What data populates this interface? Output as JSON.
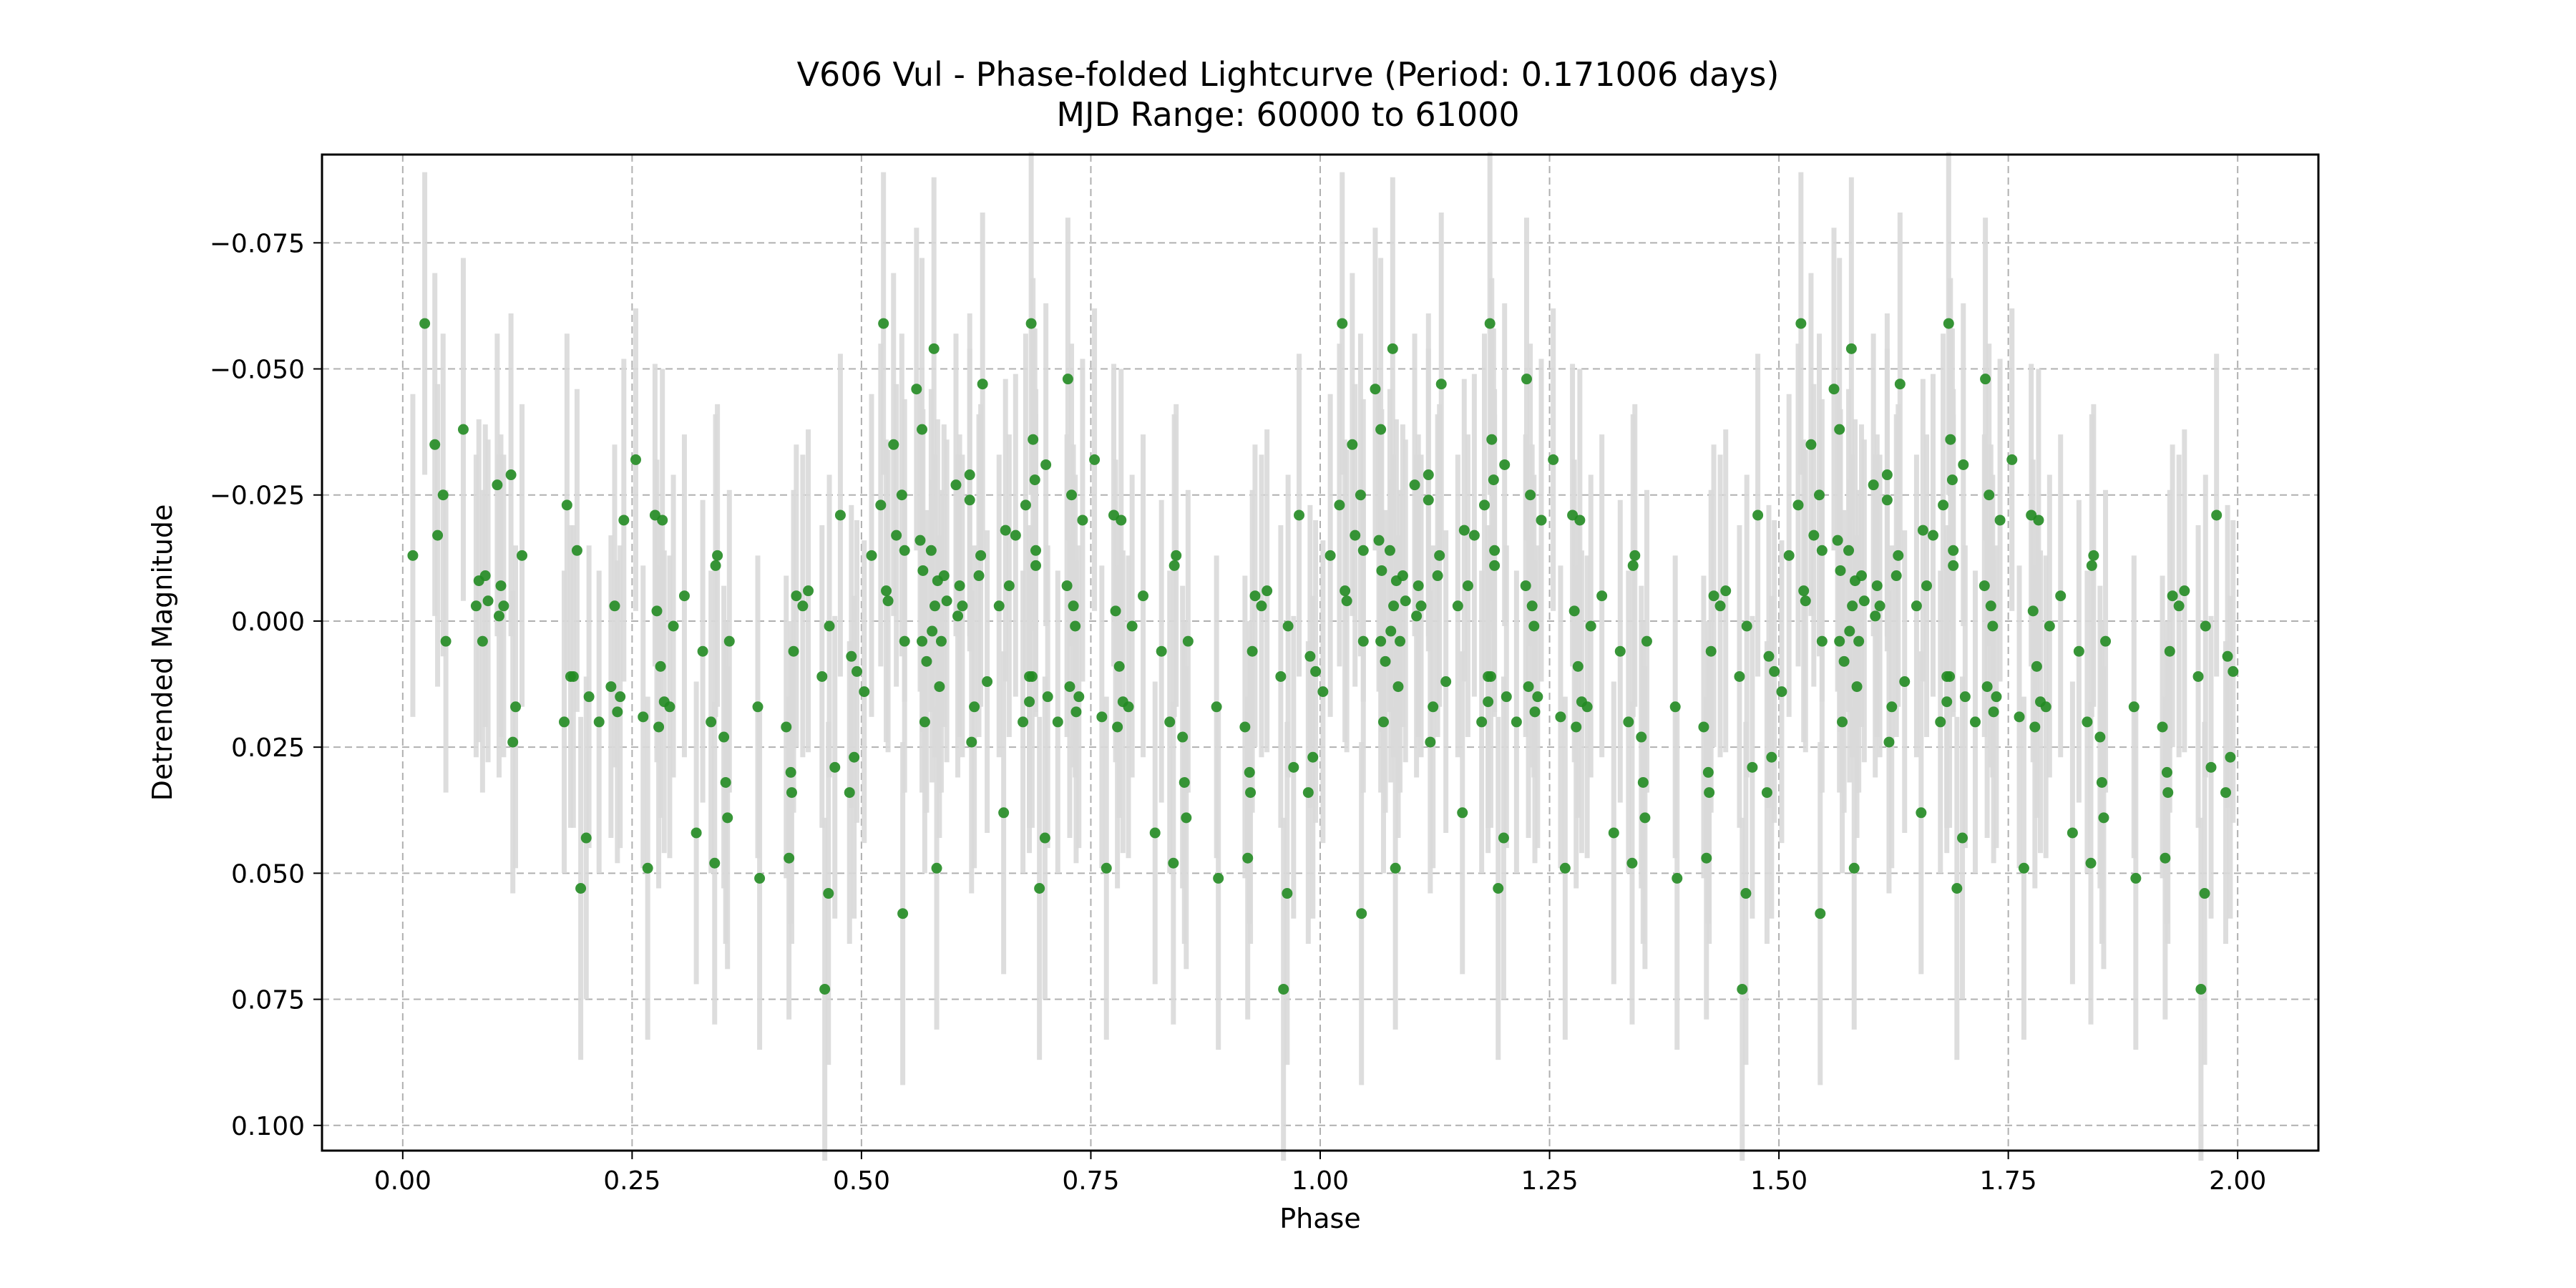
{
  "chart_data": {
    "type": "scatter",
    "title": "V606 Vul - Phase-folded Lightcurve (Period: 0.171006 days)",
    "subtitle": "MJD Range: 60000 to 61000",
    "xlabel": "Phase",
    "ylabel": "Detrended Magnitude",
    "xlim": [
      -0.088,
      2.088
    ],
    "ylim": [
      0.105,
      -0.0925
    ],
    "y_inverted": true,
    "grid": true,
    "x_ticks": [
      0.0,
      0.25,
      0.5,
      0.75,
      1.0,
      1.25,
      1.5,
      1.75,
      2.0
    ],
    "x_tick_labels": [
      "0.00",
      "0.25",
      "0.50",
      "0.75",
      "1.00",
      "1.25",
      "1.50",
      "1.75",
      "2.00"
    ],
    "y_ticks": [
      -0.075,
      -0.05,
      -0.025,
      0.0,
      0.025,
      0.05,
      0.075,
      0.1
    ],
    "y_tick_labels": [
      "−0.075",
      "−0.050",
      "−0.025",
      "0.000",
      "0.025",
      "0.050",
      "0.075",
      "0.100"
    ],
    "marker_color": "#228b22",
    "errorbar_color": "#d9d9d9",
    "base_points": [
      [
        0.011,
        -0.013,
        0.032
      ],
      [
        0.024,
        -0.059,
        0.03
      ],
      [
        0.035,
        -0.035,
        0.034
      ],
      [
        0.038,
        -0.017,
        0.03
      ],
      [
        0.044,
        -0.025,
        0.032
      ],
      [
        0.047,
        0.004,
        0.03
      ],
      [
        0.066,
        -0.038,
        0.034
      ],
      [
        0.08,
        -0.003,
        0.03
      ],
      [
        0.083,
        -0.008,
        0.032
      ],
      [
        0.087,
        0.004,
        0.03
      ],
      [
        0.09,
        -0.009,
        0.03
      ],
      [
        0.093,
        -0.004,
        0.032
      ],
      [
        0.103,
        -0.027,
        0.03
      ],
      [
        0.105,
        -0.001,
        0.032
      ],
      [
        0.107,
        -0.007,
        0.03
      ],
      [
        0.11,
        -0.003,
        0.03
      ],
      [
        0.118,
        -0.029,
        0.032
      ],
      [
        0.12,
        0.024,
        0.03
      ],
      [
        0.123,
        0.017,
        0.032
      ],
      [
        0.13,
        -0.013,
        0.03
      ],
      [
        0.176,
        0.02,
        0.03
      ],
      [
        0.179,
        -0.023,
        0.034
      ],
      [
        0.183,
        0.011,
        0.03
      ],
      [
        0.186,
        0.011,
        0.03
      ],
      [
        0.19,
        -0.014,
        0.032
      ],
      [
        0.194,
        0.053,
        0.034
      ],
      [
        0.2,
        0.043,
        0.032
      ],
      [
        0.203,
        0.015,
        0.03
      ],
      [
        0.214,
        0.02,
        0.03
      ],
      [
        0.227,
        0.013,
        0.03
      ],
      [
        0.231,
        -0.003,
        0.032
      ],
      [
        0.234,
        0.018,
        0.03
      ],
      [
        0.237,
        0.015,
        0.03
      ],
      [
        0.241,
        -0.02,
        0.032
      ],
      [
        0.254,
        -0.032,
        0.03
      ],
      [
        0.262,
        0.019,
        0.03
      ],
      [
        0.267,
        0.049,
        0.034
      ],
      [
        0.275,
        -0.021,
        0.03
      ],
      [
        0.277,
        -0.002,
        0.03
      ],
      [
        0.279,
        0.021,
        0.032
      ],
      [
        0.281,
        0.009,
        0.03
      ],
      [
        0.283,
        -0.02,
        0.03
      ],
      [
        0.285,
        0.016,
        0.03
      ],
      [
        0.291,
        0.017,
        0.03
      ],
      [
        0.295,
        0.001,
        0.03
      ],
      [
        0.307,
        -0.005,
        0.032
      ],
      [
        0.32,
        0.042,
        0.03
      ],
      [
        0.327,
        0.006,
        0.03
      ],
      [
        0.336,
        0.02,
        0.03
      ],
      [
        0.34,
        0.048,
        0.032
      ],
      [
        0.341,
        -0.011,
        0.03
      ],
      [
        0.343,
        -0.013,
        0.03
      ],
      [
        0.35,
        0.023,
        0.03
      ],
      [
        0.352,
        0.032,
        0.032
      ],
      [
        0.354,
        0.039,
        0.03
      ],
      [
        0.356,
        0.004,
        0.03
      ],
      [
        0.387,
        0.017,
        0.03
      ],
      [
        0.389,
        0.051,
        0.034
      ],
      [
        0.418,
        0.021,
        0.03
      ],
      [
        0.421,
        0.047,
        0.032
      ],
      [
        0.423,
        0.03,
        0.03
      ],
      [
        0.424,
        0.034,
        0.03
      ],
      [
        0.426,
        0.006,
        0.032
      ],
      [
        0.429,
        -0.005,
        0.03
      ],
      [
        0.436,
        -0.003,
        0.03
      ],
      [
        0.442,
        -0.006,
        0.032
      ],
      [
        0.457,
        0.011,
        0.03
      ],
      [
        0.46,
        0.073,
        0.034
      ],
      [
        0.464,
        0.054,
        0.034
      ],
      [
        0.465,
        0.001,
        0.03
      ],
      [
        0.471,
        0.029,
        0.03
      ],
      [
        0.477,
        -0.021,
        0.032
      ],
      [
        0.487,
        0.034,
        0.03
      ],
      [
        0.489,
        0.007,
        0.03
      ],
      [
        0.492,
        0.027,
        0.032
      ],
      [
        0.495,
        0.01,
        0.03
      ],
      [
        0.503,
        0.014,
        0.03
      ],
      [
        0.521,
        -0.023,
        0.032
      ],
      [
        0.527,
        -0.006,
        0.03
      ],
      [
        0.529,
        -0.004,
        0.03
      ],
      [
        0.545,
        0.058,
        0.034
      ],
      [
        0.547,
        -0.014,
        0.03
      ],
      [
        0.56,
        -0.046,
        0.032
      ],
      [
        0.564,
        -0.016,
        0.03
      ],
      [
        0.566,
        0.004,
        0.03
      ],
      [
        0.567,
        -0.01,
        0.032
      ],
      [
        0.569,
        0.02,
        0.03
      ],
      [
        0.571,
        0.008,
        0.03
      ],
      [
        0.576,
        -0.014,
        0.032
      ],
      [
        0.577,
        0.002,
        0.03
      ],
      [
        0.579,
        -0.054,
        0.034
      ],
      [
        0.582,
        0.049,
        0.032
      ],
      [
        0.585,
        0.013,
        0.03
      ],
      [
        0.618,
        -0.024,
        0.03
      ],
      [
        0.628,
        -0.009,
        0.032
      ],
      [
        0.632,
        -0.047,
        0.034
      ],
      [
        0.637,
        0.012,
        0.03
      ],
      [
        0.65,
        -0.003,
        0.03
      ],
      [
        0.655,
        0.038,
        0.032
      ],
      [
        0.657,
        -0.018,
        0.03
      ],
      [
        0.661,
        -0.007,
        0.03
      ],
      [
        0.668,
        -0.017,
        0.032
      ],
      [
        0.683,
        0.016,
        0.03
      ],
      [
        0.685,
        -0.059,
        0.034
      ],
      [
        0.687,
        -0.036,
        0.032
      ],
      [
        0.689,
        -0.028,
        0.03
      ],
      [
        0.69,
        -0.011,
        0.03
      ],
      [
        0.701,
        -0.031,
        0.032
      ],
      [
        0.724,
        -0.007,
        0.03
      ],
      [
        0.725,
        -0.048,
        0.032
      ],
      [
        0.729,
        -0.025,
        0.03
      ],
      [
        0.733,
        0.001,
        0.03
      ]
    ]
  }
}
